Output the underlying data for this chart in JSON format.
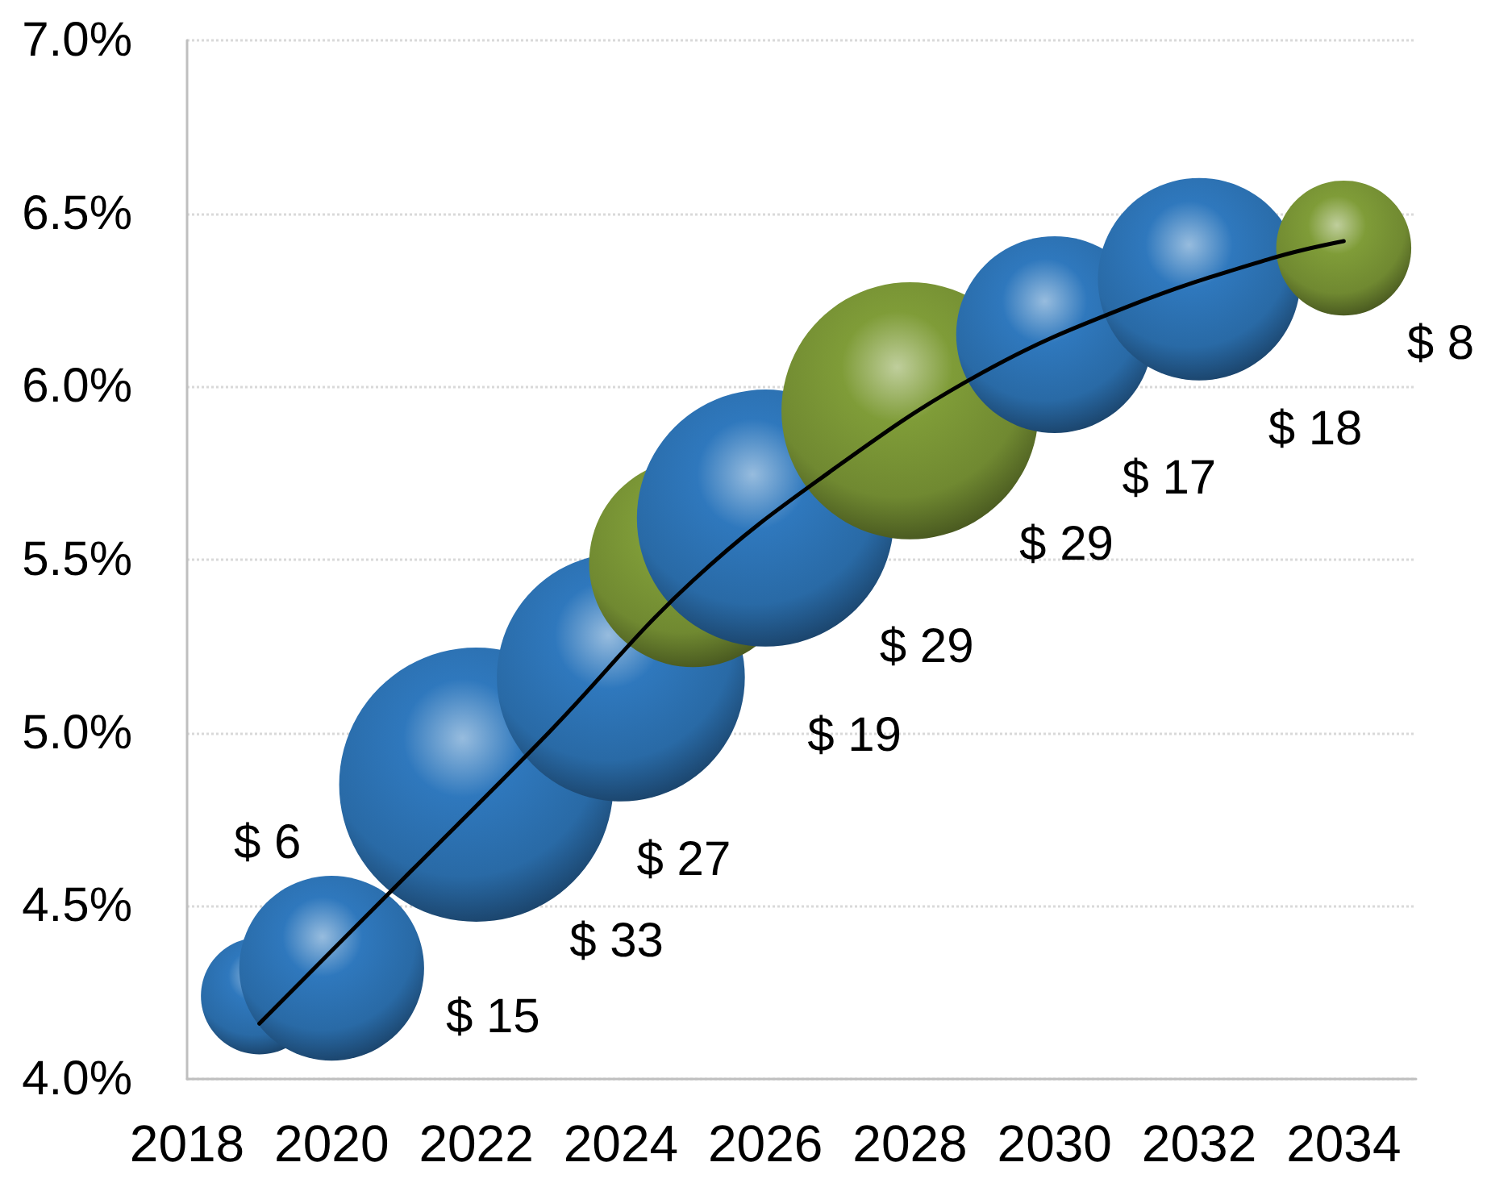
{
  "chart_data": {
    "type": "bubble",
    "xlim": [
      2018,
      2035
    ],
    "xticks": [
      2018,
      2020,
      2022,
      2024,
      2026,
      2028,
      2030,
      2032,
      2034
    ],
    "ylim": [
      4.0,
      7.0
    ],
    "yticks": [
      {
        "value": 4.0,
        "label": "4.0%"
      },
      {
        "value": 4.5,
        "label": "4.5%"
      },
      {
        "value": 5.0,
        "label": "5.0%"
      },
      {
        "value": 5.5,
        "label": "5.5%"
      },
      {
        "value": 6.0,
        "label": "6.0%"
      },
      {
        "value": 6.5,
        "label": "6.5%"
      },
      {
        "value": 7.0,
        "label": "7.0%"
      }
    ],
    "grid": "y",
    "series": [
      {
        "x": [
          2019,
          2020,
          2022,
          2024,
          2025,
          2026,
          2028,
          2030,
          2032,
          2034
        ],
        "values": [
          4.24,
          4.32,
          4.85,
          5.16,
          5.49,
          5.62,
          5.93,
          6.15,
          6.31,
          6.4
        ],
        "sizes": [
          6,
          15,
          33,
          27,
          19,
          29,
          29,
          17,
          18,
          8
        ],
        "colors": [
          "#2f78bd",
          "#2f78bd",
          "#2f78bd",
          "#2f78bd",
          "#7f9c38",
          "#2f78bd",
          "#7f9c38",
          "#2f78bd",
          "#2f78bd",
          "#7f9c38"
        ],
        "value_labels": [
          "$ 6",
          "$ 15",
          "$ 33",
          "$ 27",
          "$ 19",
          "$ 29",
          "$ 29",
          "$ 17",
          "$ 18",
          "$ 8"
        ]
      },
      {
        "type": "line",
        "x": [
          2019,
          2021,
          2023,
          2025,
          2027,
          2029,
          2031,
          2033,
          2034
        ],
        "values": [
          4.16,
          4.58,
          5.0,
          5.44,
          5.77,
          6.04,
          6.23,
          6.37,
          6.42
        ],
        "color": "#000000",
        "marker": "none"
      }
    ]
  }
}
